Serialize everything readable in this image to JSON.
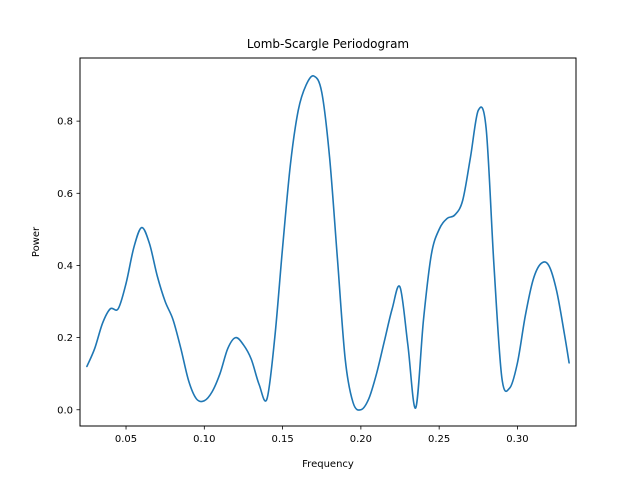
{
  "chart_data": {
    "type": "line",
    "title": "Lomb-Scargle Periodogram",
    "xlabel": "Frequency",
    "ylabel": "Power",
    "xlim": [
      0.0206,
      0.3374
    ],
    "ylim": [
      -0.045,
      0.975
    ],
    "xticks": [
      0.05,
      0.1,
      0.15,
      0.2,
      0.25,
      0.3
    ],
    "xtick_labels": [
      "0.05",
      "0.10",
      "0.15",
      "0.20",
      "0.25",
      "0.30"
    ],
    "yticks": [
      0.0,
      0.2,
      0.4,
      0.6,
      0.8
    ],
    "ytick_labels": [
      "0.0",
      "0.2",
      "0.4",
      "0.6",
      "0.8"
    ],
    "grid": false,
    "legend": "none",
    "series": [
      {
        "color": "#1f77b4",
        "x": [
          0.025,
          0.03,
          0.035,
          0.04,
          0.045,
          0.05,
          0.055,
          0.06,
          0.065,
          0.07,
          0.075,
          0.08,
          0.085,
          0.09,
          0.095,
          0.1,
          0.105,
          0.11,
          0.115,
          0.12,
          0.125,
          0.13,
          0.135,
          0.14,
          0.145,
          0.15,
          0.155,
          0.16,
          0.165,
          0.17,
          0.175,
          0.18,
          0.185,
          0.19,
          0.195,
          0.2,
          0.205,
          0.21,
          0.215,
          0.22,
          0.225,
          0.23,
          0.235,
          0.24,
          0.245,
          0.25,
          0.255,
          0.26,
          0.265,
          0.27,
          0.275,
          0.28,
          0.285,
          0.29,
          0.295,
          0.3,
          0.305,
          0.31,
          0.315,
          0.32,
          0.325,
          0.33,
          0.333
        ],
        "y": [
          0.12,
          0.17,
          0.24,
          0.28,
          0.28,
          0.35,
          0.45,
          0.505,
          0.46,
          0.37,
          0.3,
          0.25,
          0.17,
          0.08,
          0.03,
          0.025,
          0.05,
          0.1,
          0.17,
          0.2,
          0.18,
          0.14,
          0.07,
          0.03,
          0.2,
          0.45,
          0.68,
          0.83,
          0.9,
          0.925,
          0.88,
          0.7,
          0.42,
          0.14,
          0.02,
          0.0,
          0.03,
          0.1,
          0.19,
          0.28,
          0.34,
          0.18,
          0.005,
          0.25,
          0.43,
          0.5,
          0.53,
          0.54,
          0.58,
          0.7,
          0.83,
          0.78,
          0.4,
          0.09,
          0.06,
          0.13,
          0.26,
          0.36,
          0.405,
          0.4,
          0.33,
          0.21,
          0.13
        ]
      }
    ]
  }
}
